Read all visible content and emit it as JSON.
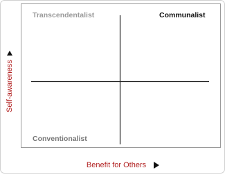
{
  "quadrants": {
    "top_left": "Transcendentalist",
    "top_right": "Communalist",
    "bottom_left": "Conventionalist"
  },
  "axes": {
    "y_label": "Self-awareness",
    "x_label": "Benefit for Others"
  }
}
